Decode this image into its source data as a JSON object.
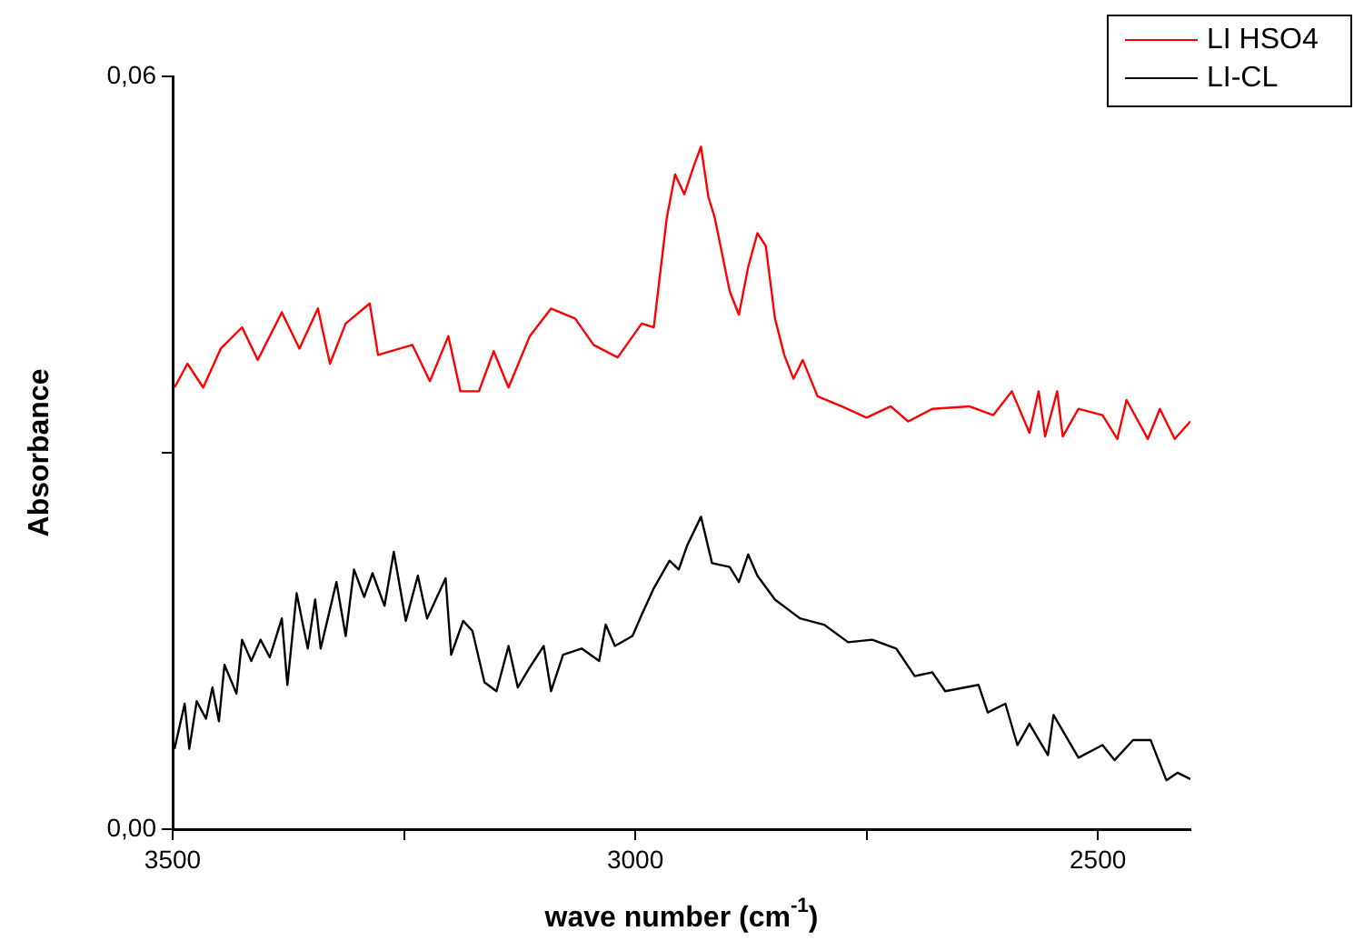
{
  "chart_data": {
    "type": "line",
    "xlabel": "wave number (cm$^{-1}$)",
    "ylabel": "Absorbance",
    "xlim": [
      3500,
      2400
    ],
    "xticks": [
      3500,
      {
        "value": 3250,
        "label": null
      },
      3000,
      {
        "value": 2750,
        "label": null
      },
      2500
    ],
    "ylim": [
      0,
      0.06
    ],
    "yticks": [
      {
        "value": 0,
        "label": "0,00"
      },
      {
        "value": 0.03,
        "label": null
      },
      {
        "value": 0.06,
        "label": "0,06"
      }
    ],
    "grid": false,
    "legend": "top right",
    "marker": "none",
    "line_style": "solid",
    "series": [
      {
        "name": "LI HSO4",
        "color": "#ff0000",
        "x": [
          3498,
          3484,
          3467,
          3448,
          3425,
          3408,
          3382,
          3363,
          3343,
          3330,
          3313,
          3287,
          3278,
          3241,
          3222,
          3202,
          3189,
          3169,
          3153,
          3137,
          3114,
          3091,
          3065,
          3045,
          3019,
          2993,
          2980,
          2966,
          2957,
          2947,
          2937,
          2929,
          2921,
          2914,
          2898,
          2888,
          2878,
          2868,
          2859,
          2849,
          2839,
          2829,
          2819,
          2803,
          2777,
          2750,
          2724,
          2705,
          2679,
          2639,
          2613,
          2593,
          2574,
          2564,
          2557,
          2544,
          2538,
          2521,
          2495,
          2479,
          2469,
          2446,
          2433,
          2417,
          2400
        ],
        "values": [
          0.0352,
          0.0371,
          0.0352,
          0.0383,
          0.04,
          0.0374,
          0.0412,
          0.0383,
          0.0415,
          0.0371,
          0.0403,
          0.0419,
          0.0378,
          0.0386,
          0.0357,
          0.0393,
          0.0349,
          0.0349,
          0.0381,
          0.0352,
          0.0393,
          0.0415,
          0.0407,
          0.0386,
          0.0376,
          0.0403,
          0.04,
          0.0487,
          0.0522,
          0.0506,
          0.0528,
          0.0544,
          0.0504,
          0.0487,
          0.0429,
          0.041,
          0.0448,
          0.0475,
          0.0465,
          0.0407,
          0.0378,
          0.0359,
          0.0374,
          0.0345,
          0.0337,
          0.0328,
          0.0337,
          0.0325,
          0.0335,
          0.0337,
          0.033,
          0.0349,
          0.0316,
          0.0349,
          0.0313,
          0.0349,
          0.0313,
          0.0335,
          0.033,
          0.0311,
          0.0342,
          0.0311,
          0.0335,
          0.0311,
          0.0325
        ]
      },
      {
        "name": "LI-CL",
        "color": "#000000",
        "x": [
          3498,
          3487,
          3482,
          3474,
          3464,
          3457,
          3450,
          3444,
          3431,
          3425,
          3415,
          3405,
          3395,
          3382,
          3376,
          3366,
          3354,
          3346,
          3340,
          3323,
          3313,
          3304,
          3293,
          3284,
          3271,
          3261,
          3248,
          3235,
          3225,
          3205,
          3199,
          3186,
          3176,
          3163,
          3150,
          3137,
          3127,
          3114,
          3099,
          3091,
          3078,
          3058,
          3039,
          3032,
          3022,
          3003,
          2993,
          2980,
          2963,
          2953,
          2944,
          2929,
          2917,
          2898,
          2888,
          2878,
          2868,
          2849,
          2822,
          2796,
          2770,
          2744,
          2718,
          2698,
          2679,
          2665,
          2629,
          2619,
          2600,
          2587,
          2574,
          2554,
          2548,
          2521,
          2495,
          2482,
          2462,
          2443,
          2426,
          2414,
          2400
        ],
        "values": [
          0.0064,
          0.01,
          0.0064,
          0.0102,
          0.0088,
          0.0113,
          0.0086,
          0.0131,
          0.0108,
          0.0151,
          0.0134,
          0.0151,
          0.0137,
          0.0168,
          0.0115,
          0.0188,
          0.0144,
          0.0183,
          0.0144,
          0.0197,
          0.0154,
          0.0207,
          0.0185,
          0.0204,
          0.0178,
          0.0221,
          0.0166,
          0.0202,
          0.0168,
          0.02,
          0.0139,
          0.0166,
          0.0158,
          0.0117,
          0.011,
          0.0146,
          0.0113,
          0.0129,
          0.0146,
          0.011,
          0.0139,
          0.0144,
          0.0134,
          0.0163,
          0.0146,
          0.0154,
          0.0171,
          0.0192,
          0.0214,
          0.0207,
          0.0226,
          0.0249,
          0.0212,
          0.0209,
          0.0197,
          0.0219,
          0.0202,
          0.0183,
          0.0168,
          0.0163,
          0.0149,
          0.0151,
          0.0144,
          0.0122,
          0.0125,
          0.011,
          0.0115,
          0.0093,
          0.01,
          0.0067,
          0.0084,
          0.0059,
          0.0091,
          0.0057,
          0.0067,
          0.0055,
          0.0071,
          0.0071,
          0.0039,
          0.0045,
          0.004
        ]
      }
    ]
  }
}
